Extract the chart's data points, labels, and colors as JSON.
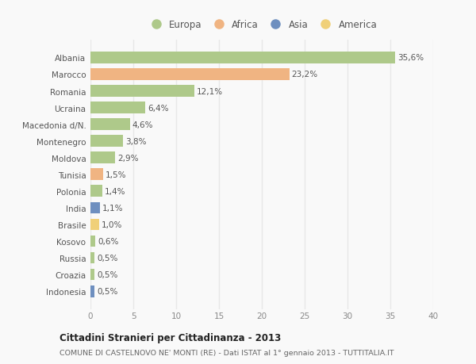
{
  "countries": [
    "Albania",
    "Marocco",
    "Romania",
    "Ucraina",
    "Macedonia d/N.",
    "Montenegro",
    "Moldova",
    "Tunisia",
    "Polonia",
    "India",
    "Brasile",
    "Kosovo",
    "Russia",
    "Croazia",
    "Indonesia"
  ],
  "values": [
    35.6,
    23.2,
    12.1,
    6.4,
    4.6,
    3.8,
    2.9,
    1.5,
    1.4,
    1.1,
    1.0,
    0.6,
    0.5,
    0.5,
    0.5
  ],
  "labels": [
    "35,6%",
    "23,2%",
    "12,1%",
    "6,4%",
    "4,6%",
    "3,8%",
    "2,9%",
    "1,5%",
    "1,4%",
    "1,1%",
    "1,0%",
    "0,6%",
    "0,5%",
    "0,5%",
    "0,5%"
  ],
  "continents": [
    "Europa",
    "Africa",
    "Europa",
    "Europa",
    "Europa",
    "Europa",
    "Europa",
    "Africa",
    "Europa",
    "Asia",
    "America",
    "Europa",
    "Europa",
    "Europa",
    "Asia"
  ],
  "colors": {
    "Europa": "#aec98a",
    "Africa": "#f0b482",
    "Asia": "#6e8fbf",
    "America": "#f0d078"
  },
  "legend_colors": {
    "Europa": "#aec98a",
    "Africa": "#f0b482",
    "Asia": "#6e8fbf",
    "America": "#f0d078"
  },
  "xlim": [
    0,
    40
  ],
  "xticks": [
    0,
    5,
    10,
    15,
    20,
    25,
    30,
    35,
    40
  ],
  "title": "Cittadini Stranieri per Cittadinanza - 2013",
  "subtitle": "COMUNE DI CASTELNOVO NE' MONTI (RE) - Dati ISTAT al 1° gennaio 2013 - TUTTITALIA.IT",
  "background_color": "#f9f9f9",
  "grid_color": "#e8e8e8",
  "bar_height": 0.7,
  "label_fontsize": 7.5,
  "ytick_fontsize": 7.5,
  "xtick_fontsize": 7.5
}
